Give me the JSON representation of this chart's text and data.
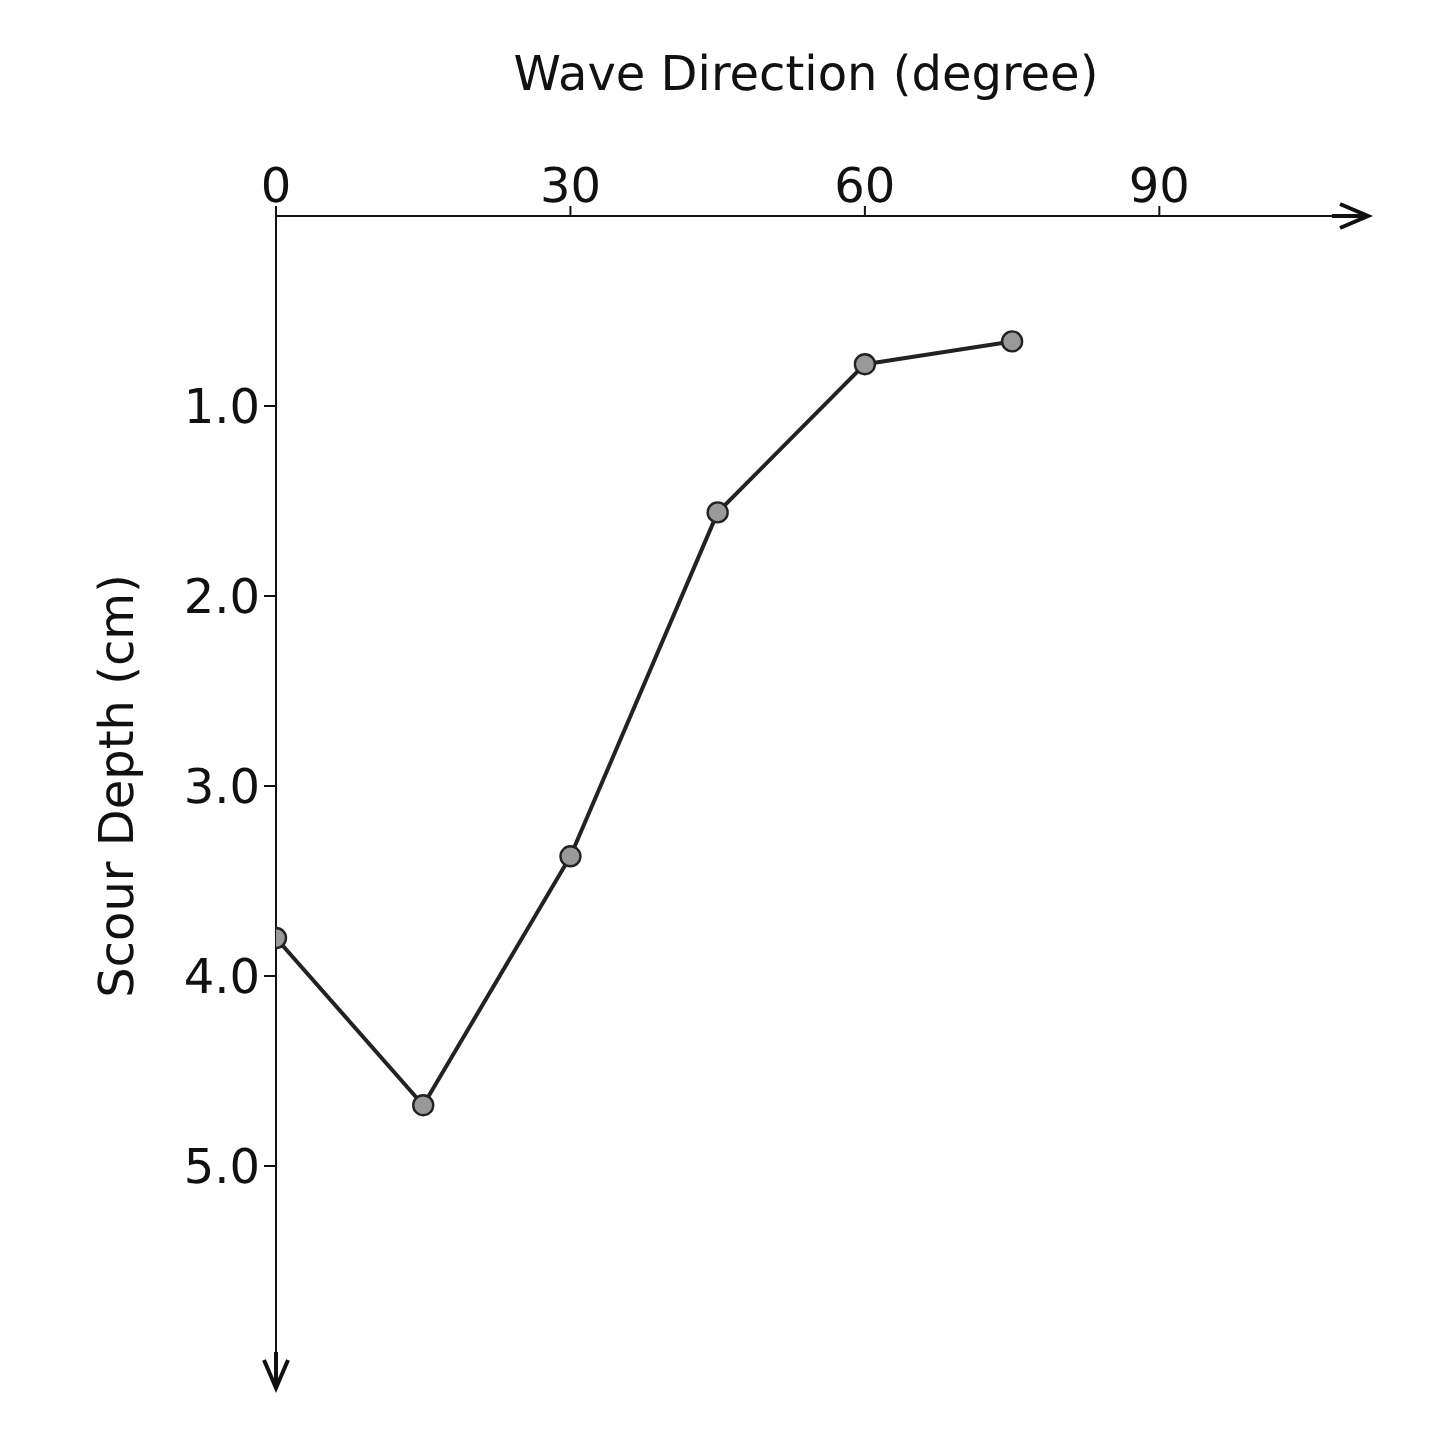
{
  "chart_data": {
    "type": "line",
    "xlabel": "Wave Direction  (degree)",
    "ylabel": "Scour Depth (cm)",
    "x": [
      0,
      15,
      30,
      45,
      60,
      75
    ],
    "series": [
      {
        "color": "#222222",
        "values": [
          3.8,
          4.68,
          3.37,
          1.56,
          0.78,
          0.66
        ]
      }
    ],
    "xlim": [
      0,
      108
    ],
    "xticks": [
      0,
      30,
      60,
      90
    ],
    "ylim": [
      6,
      0
    ],
    "yticks": [
      {
        "value": 1,
        "label": "1.0"
      },
      {
        "value": 2,
        "label": "2.0"
      },
      {
        "value": 3,
        "label": "3.0"
      },
      {
        "value": 4,
        "label": "4.0"
      },
      {
        "value": 5,
        "label": "5.0"
      }
    ],
    "marker": "circle",
    "line_style": "solid",
    "grid": false,
    "legend": false
  }
}
